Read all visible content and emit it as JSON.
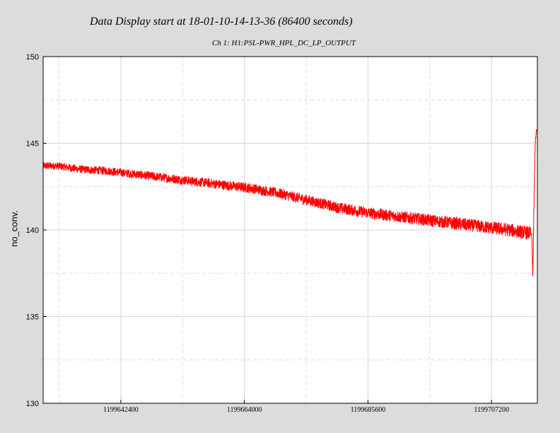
{
  "title": "Data Display start at 18-01-10-14-13-36 (86400 seconds)",
  "subtitle": "Ch 1: H1:PSL-PWR_HPL_DC_LP_OUTPUT",
  "chart_data": {
    "type": "line",
    "title": "Data Display start at 18-01-10-14-13-36 (86400 seconds)",
    "subtitle": "Ch 1: H1:PSL-PWR_HPL_DC_LP_OUTPUT",
    "xlabel": "",
    "ylabel": "no_conv.",
    "xlim": [
      1199628816,
      1199715216
    ],
    "ylim": [
      130,
      150
    ],
    "xticks": [
      1199642400,
      1199664000,
      1199685600,
      1199707200
    ],
    "yticks": [
      130,
      135,
      140,
      145,
      150
    ],
    "grid": true,
    "series": [
      {
        "color": "#ff0000",
        "x": [
          1199628816,
          1199631216,
          1199635216,
          1199640216,
          1199645216,
          1199650216,
          1199655216,
          1199660216,
          1199665216,
          1199670216,
          1199675216,
          1199680216,
          1199685216,
          1199690216,
          1199695216,
          1199700216,
          1199705216,
          1199710216,
          1199714016,
          1199714216,
          1199714416,
          1199714616,
          1199714816,
          1199715016,
          1199715216
        ],
        "values": [
          143.7,
          143.7,
          143.5,
          143.4,
          143.2,
          143.0,
          142.8,
          142.6,
          142.4,
          142.1,
          141.7,
          141.3,
          141.0,
          140.8,
          140.6,
          140.4,
          140.2,
          140.0,
          139.8,
          139.7,
          137.3,
          141.5,
          145.0,
          145.7,
          145.8
        ]
      }
    ]
  }
}
